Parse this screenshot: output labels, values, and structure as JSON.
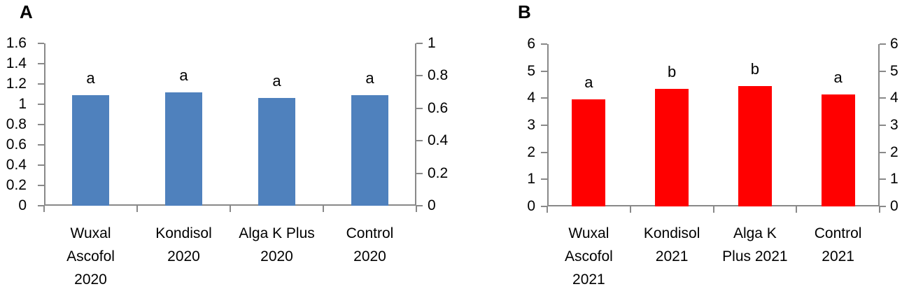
{
  "figure": {
    "background_hex": "#FFFFFF",
    "axis_line_hex": "#898989",
    "text_hex": "#000000"
  },
  "chart_data": [
    {
      "type": "bar",
      "panel_label": "A",
      "bar_color_hex": "#4F81BD",
      "categories": [
        "Wuxal Ascofol 2020",
        "Kondisol 2020",
        "Alga K Plus 2020",
        "Control 2020"
      ],
      "category_label_lines": [
        [
          "Wuxal",
          "Ascofol",
          "2020"
        ],
        [
          "Kondisol",
          "2020"
        ],
        [
          "Alga K Plus",
          "2020"
        ],
        [
          "Control",
          "2020"
        ]
      ],
      "values": [
        1.09,
        1.12,
        1.06,
        1.09
      ],
      "significance_letters": [
        "a",
        "a",
        "a",
        "a"
      ],
      "left_axis": {
        "min": 0,
        "max": 1.6,
        "tick_step": 0.2,
        "tick_labels": [
          "1.6",
          "1.4",
          "1.2",
          "1",
          "0.8",
          "0.6",
          "0.4",
          "0.2",
          "0"
        ]
      },
      "right_axis": {
        "min": 0,
        "max": 1,
        "tick_step": 0.2,
        "tick_labels": [
          "1",
          "0.8",
          "0.6",
          "0.4",
          "0.2",
          "0"
        ]
      },
      "grid": false,
      "legend": false
    },
    {
      "type": "bar",
      "panel_label": "B",
      "bar_color_hex": "#FF0000",
      "categories": [
        "Wuxal Ascofol 2021",
        "Kondisol 2021",
        "Alga K Plus 2021",
        "Control 2021"
      ],
      "category_label_lines": [
        [
          "Wuxal",
          "Ascofol",
          "2021"
        ],
        [
          "Kondisol",
          "2021"
        ],
        [
          "Alga K",
          "Plus 2021"
        ],
        [
          "Control",
          "2021"
        ]
      ],
      "values": [
        3.95,
        4.35,
        4.45,
        4.15
      ],
      "significance_letters": [
        "a",
        "b",
        "b",
        "a"
      ],
      "left_axis": {
        "min": 0,
        "max": 6,
        "tick_step": 1,
        "tick_labels": [
          "6",
          "5",
          "4",
          "3",
          "2",
          "1",
          "0"
        ]
      },
      "right_axis": {
        "min": 0,
        "max": 6,
        "tick_step": 1,
        "tick_labels": [
          "6",
          "5",
          "4",
          "3",
          "2",
          "1",
          "0"
        ]
      },
      "grid": false,
      "legend": false
    }
  ]
}
